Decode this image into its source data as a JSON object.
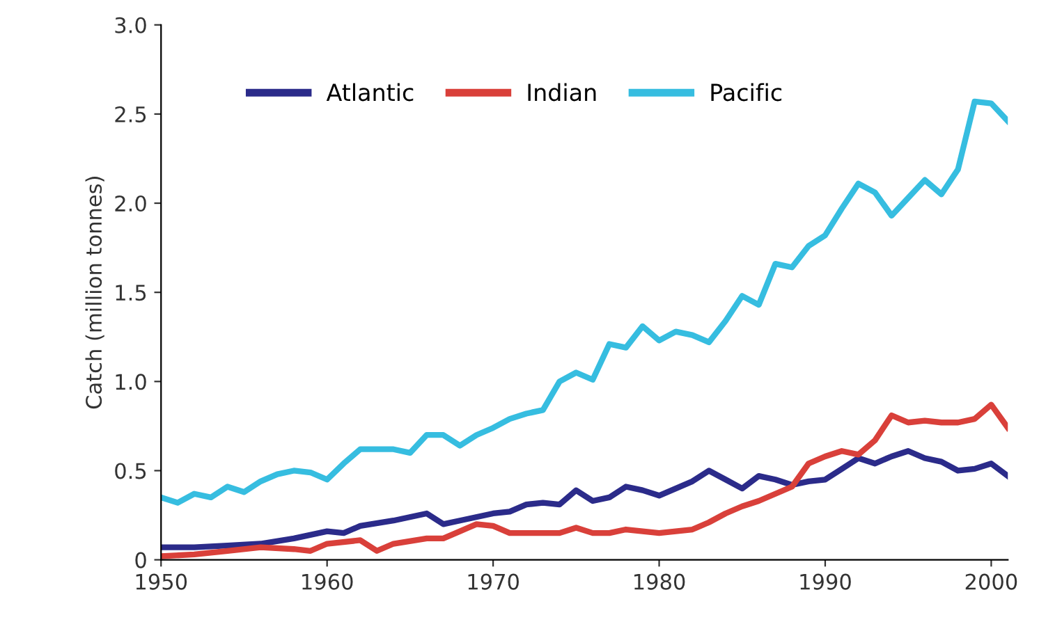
{
  "chart_data": {
    "type": "line",
    "ylabel": "Catch (million tonnes)",
    "xlim": [
      1950,
      2001
    ],
    "ylim": [
      0,
      3.0
    ],
    "xticks": [
      1950,
      1960,
      1970,
      1980,
      1990,
      2000
    ],
    "yticks": [
      0,
      0.5,
      {
        "value": 1.0,
        "label": "1.0"
      },
      1.5,
      {
        "value": 2.0,
        "label": "2.0"
      },
      2.5,
      {
        "value": 3.0,
        "label": "3.0"
      }
    ],
    "grid": false,
    "legend": "top left",
    "marker": "none",
    "line_style": "solid",
    "series": [
      {
        "name": "Atlantic",
        "color": "#2b2b8a",
        "x": [
          1950,
          1952,
          1954,
          1956,
          1958,
          1960,
          1961,
          1962,
          1964,
          1966,
          1967,
          1968,
          1970,
          1971,
          1972,
          1973,
          1974,
          1975,
          1976,
          1977,
          1978,
          1979,
          1980,
          1981,
          1982,
          1983,
          1984,
          1985,
          1986,
          1987,
          1988,
          1989,
          1990,
          1991,
          1992,
          1993,
          1994,
          1995,
          1996,
          1997,
          1998,
          1999,
          2000,
          2001
        ],
        "values": [
          0.07,
          0.07,
          0.08,
          0.09,
          0.12,
          0.16,
          0.15,
          0.19,
          0.22,
          0.26,
          0.2,
          0.22,
          0.26,
          0.27,
          0.31,
          0.32,
          0.31,
          0.39,
          0.33,
          0.35,
          0.41,
          0.39,
          0.36,
          0.4,
          0.44,
          0.5,
          0.45,
          0.4,
          0.47,
          0.45,
          0.42,
          0.44,
          0.45,
          0.51,
          0.57,
          0.54,
          0.58,
          0.61,
          0.57,
          0.55,
          0.5,
          0.51,
          0.54,
          0.47
        ]
      },
      {
        "name": "Indian",
        "color": "#d9403a",
        "x": [
          1950,
          1952,
          1954,
          1956,
          1958,
          1959,
          1960,
          1962,
          1963,
          1964,
          1966,
          1967,
          1968,
          1969,
          1970,
          1971,
          1972,
          1974,
          1975,
          1976,
          1977,
          1978,
          1979,
          1980,
          1981,
          1982,
          1983,
          1984,
          1985,
          1986,
          1987,
          1988,
          1989,
          1990,
          1991,
          1992,
          1993,
          1994,
          1995,
          1996,
          1997,
          1998,
          1999,
          2000,
          2001
        ],
        "values": [
          0.02,
          0.03,
          0.05,
          0.07,
          0.06,
          0.05,
          0.09,
          0.11,
          0.05,
          0.09,
          0.12,
          0.12,
          0.16,
          0.2,
          0.19,
          0.15,
          0.15,
          0.15,
          0.18,
          0.15,
          0.15,
          0.17,
          0.16,
          0.15,
          0.16,
          0.17,
          0.21,
          0.26,
          0.3,
          0.33,
          0.37,
          0.41,
          0.54,
          0.58,
          0.61,
          0.59,
          0.67,
          0.81,
          0.77,
          0.78,
          0.77,
          0.77,
          0.79,
          0.87,
          0.74
        ]
      },
      {
        "name": "Pacific",
        "color": "#36bde0",
        "x": [
          1950,
          1951,
          1952,
          1953,
          1954,
          1955,
          1956,
          1957,
          1958,
          1959,
          1960,
          1961,
          1962,
          1963,
          1964,
          1965,
          1966,
          1967,
          1968,
          1969,
          1970,
          1971,
          1972,
          1973,
          1974,
          1975,
          1976,
          1977,
          1978,
          1979,
          1980,
          1981,
          1982,
          1983,
          1984,
          1985,
          1986,
          1987,
          1988,
          1989,
          1990,
          1991,
          1992,
          1993,
          1994,
          1995,
          1996,
          1997,
          1998,
          1999,
          2000,
          2001
        ],
        "values": [
          0.35,
          0.32,
          0.37,
          0.35,
          0.41,
          0.38,
          0.44,
          0.48,
          0.5,
          0.49,
          0.45,
          0.54,
          0.62,
          0.62,
          0.62,
          0.6,
          0.7,
          0.7,
          0.64,
          0.7,
          0.74,
          0.79,
          0.82,
          0.84,
          1.0,
          1.05,
          1.01,
          1.21,
          1.19,
          1.31,
          1.23,
          1.28,
          1.26,
          1.22,
          1.34,
          1.48,
          1.43,
          1.66,
          1.64,
          1.76,
          1.82,
          1.97,
          2.11,
          2.06,
          1.93,
          2.03,
          2.13,
          2.05,
          2.19,
          2.57,
          2.56,
          2.46
        ]
      }
    ]
  }
}
